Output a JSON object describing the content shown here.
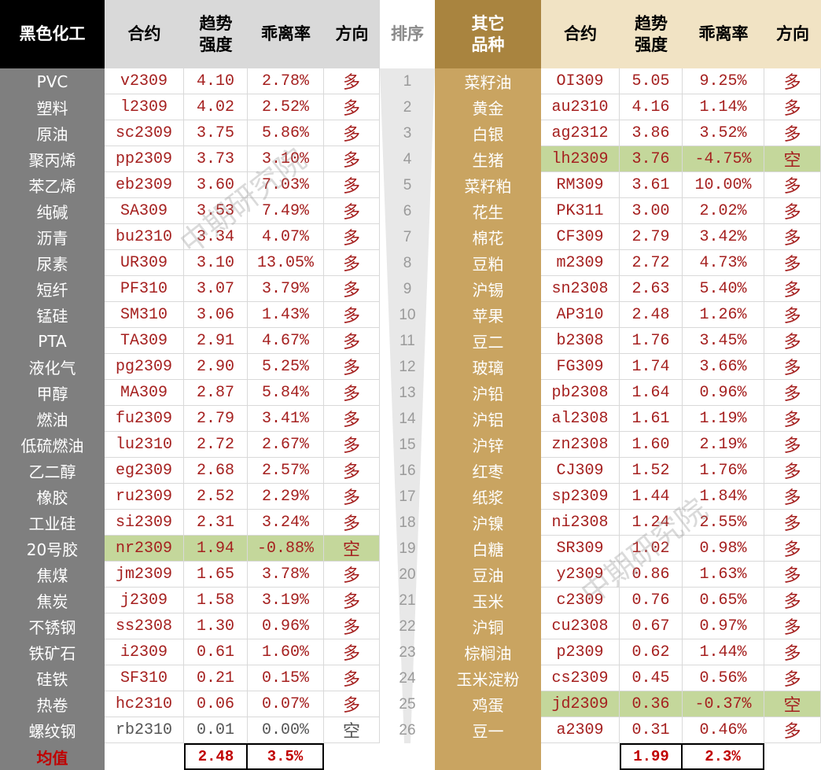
{
  "headers": {
    "left_title": "黑色化工",
    "contract": "合约",
    "strength": [
      "趋势",
      "强度"
    ],
    "deviation": "乖离率",
    "direction": "方向",
    "rank": "排序",
    "right_title": [
      "其它",
      "品种"
    ]
  },
  "left_rows": [
    {
      "name": "PVC",
      "contract": "v2309",
      "strength": "4.10",
      "deviation": "2.78%",
      "direction": "多"
    },
    {
      "name": "塑料",
      "contract": "l2309",
      "strength": "4.02",
      "deviation": "2.52%",
      "direction": "多"
    },
    {
      "name": "原油",
      "contract": "sc2309",
      "strength": "3.75",
      "deviation": "5.86%",
      "direction": "多"
    },
    {
      "name": "聚丙烯",
      "contract": "pp2309",
      "strength": "3.73",
      "deviation": "3.10%",
      "direction": "多"
    },
    {
      "name": "苯乙烯",
      "contract": "eb2309",
      "strength": "3.60",
      "deviation": "7.03%",
      "direction": "多"
    },
    {
      "name": "纯碱",
      "contract": "SA309",
      "strength": "3.53",
      "deviation": "7.49%",
      "direction": "多"
    },
    {
      "name": "沥青",
      "contract": "bu2310",
      "strength": "3.34",
      "deviation": "4.07%",
      "direction": "多"
    },
    {
      "name": "尿素",
      "contract": "UR309",
      "strength": "3.10",
      "deviation": "13.05%",
      "direction": "多"
    },
    {
      "name": "短纤",
      "contract": "PF310",
      "strength": "3.07",
      "deviation": "3.79%",
      "direction": "多"
    },
    {
      "name": "锰硅",
      "contract": "SM310",
      "strength": "3.06",
      "deviation": "1.43%",
      "direction": "多"
    },
    {
      "name": "PTA",
      "contract": "TA309",
      "strength": "2.91",
      "deviation": "4.67%",
      "direction": "多"
    },
    {
      "name": "液化气",
      "contract": "pg2309",
      "strength": "2.90",
      "deviation": "5.25%",
      "direction": "多"
    },
    {
      "name": "甲醇",
      "contract": "MA309",
      "strength": "2.87",
      "deviation": "5.84%",
      "direction": "多"
    },
    {
      "name": "燃油",
      "contract": "fu2309",
      "strength": "2.79",
      "deviation": "3.41%",
      "direction": "多"
    },
    {
      "name": "低硫燃油",
      "contract": "lu2310",
      "strength": "2.72",
      "deviation": "2.67%",
      "direction": "多"
    },
    {
      "name": "乙二醇",
      "contract": "eg2309",
      "strength": "2.68",
      "deviation": "2.57%",
      "direction": "多"
    },
    {
      "name": "橡胶",
      "contract": "ru2309",
      "strength": "2.52",
      "deviation": "2.29%",
      "direction": "多"
    },
    {
      "name": "工业硅",
      "contract": "si2309",
      "strength": "2.31",
      "deviation": "3.24%",
      "direction": "多"
    },
    {
      "name": "20号胶",
      "contract": "nr2309",
      "strength": "1.94",
      "deviation": "-0.88%",
      "direction": "空",
      "short": true
    },
    {
      "name": "焦煤",
      "contract": "jm2309",
      "strength": "1.65",
      "deviation": "3.78%",
      "direction": "多"
    },
    {
      "name": "焦炭",
      "contract": "j2309",
      "strength": "1.58",
      "deviation": "3.19%",
      "direction": "多"
    },
    {
      "name": "不锈钢",
      "contract": "ss2308",
      "strength": "1.30",
      "deviation": "0.96%",
      "direction": "多"
    },
    {
      "name": "铁矿石",
      "contract": "i2309",
      "strength": "0.61",
      "deviation": "1.60%",
      "direction": "多"
    },
    {
      "name": "硅铁",
      "contract": "SF310",
      "strength": "0.21",
      "deviation": "0.15%",
      "direction": "多"
    },
    {
      "name": "热卷",
      "contract": "hc2310",
      "strength": "0.06",
      "deviation": "0.07%",
      "direction": "多"
    },
    {
      "name": "螺纹钢",
      "contract": "rb2310",
      "strength": "0.01",
      "deviation": "0.00%",
      "direction": "空",
      "muted": true
    }
  ],
  "ranks": [
    "1",
    "2",
    "3",
    "4",
    "5",
    "6",
    "7",
    "8",
    "9",
    "10",
    "11",
    "12",
    "13",
    "14",
    "15",
    "16",
    "17",
    "18",
    "19",
    "20",
    "21",
    "22",
    "23",
    "24",
    "25",
    "26"
  ],
  "right_rows": [
    {
      "name": "菜籽油",
      "contract": "OI309",
      "strength": "5.05",
      "deviation": "9.25%",
      "direction": "多"
    },
    {
      "name": "黄金",
      "contract": "au2310",
      "strength": "4.16",
      "deviation": "1.14%",
      "direction": "多"
    },
    {
      "name": "白银",
      "contract": "ag2312",
      "strength": "3.86",
      "deviation": "3.52%",
      "direction": "多"
    },
    {
      "name": "生猪",
      "contract": "lh2309",
      "strength": "3.76",
      "deviation": "-4.75%",
      "direction": "空",
      "short": true
    },
    {
      "name": "菜籽粕",
      "contract": "RM309",
      "strength": "3.61",
      "deviation": "10.00%",
      "direction": "多"
    },
    {
      "name": "花生",
      "contract": "PK311",
      "strength": "3.00",
      "deviation": "2.02%",
      "direction": "多"
    },
    {
      "name": "棉花",
      "contract": "CF309",
      "strength": "2.79",
      "deviation": "3.42%",
      "direction": "多"
    },
    {
      "name": "豆粕",
      "contract": "m2309",
      "strength": "2.72",
      "deviation": "4.73%",
      "direction": "多"
    },
    {
      "name": "沪锡",
      "contract": "sn2308",
      "strength": "2.63",
      "deviation": "5.40%",
      "direction": "多"
    },
    {
      "name": "苹果",
      "contract": "AP310",
      "strength": "2.48",
      "deviation": "1.26%",
      "direction": "多"
    },
    {
      "name": "豆二",
      "contract": "b2308",
      "strength": "1.76",
      "deviation": "3.45%",
      "direction": "多"
    },
    {
      "name": "玻璃",
      "contract": "FG309",
      "strength": "1.74",
      "deviation": "3.66%",
      "direction": "多"
    },
    {
      "name": "沪铅",
      "contract": "pb2308",
      "strength": "1.64",
      "deviation": "0.96%",
      "direction": "多"
    },
    {
      "name": "沪铝",
      "contract": "al2308",
      "strength": "1.61",
      "deviation": "1.19%",
      "direction": "多"
    },
    {
      "name": "沪锌",
      "contract": "zn2308",
      "strength": "1.60",
      "deviation": "2.19%",
      "direction": "多"
    },
    {
      "name": "红枣",
      "contract": "CJ309",
      "strength": "1.52",
      "deviation": "1.76%",
      "direction": "多"
    },
    {
      "name": "纸浆",
      "contract": "sp2309",
      "strength": "1.44",
      "deviation": "1.84%",
      "direction": "多"
    },
    {
      "name": "沪镍",
      "contract": "ni2308",
      "strength": "1.24",
      "deviation": "2.55%",
      "direction": "多"
    },
    {
      "name": "白糖",
      "contract": "SR309",
      "strength": "1.02",
      "deviation": "0.98%",
      "direction": "多"
    },
    {
      "name": "豆油",
      "contract": "y2309",
      "strength": "0.86",
      "deviation": "1.63%",
      "direction": "多"
    },
    {
      "name": "玉米",
      "contract": "c2309",
      "strength": "0.76",
      "deviation": "0.65%",
      "direction": "多"
    },
    {
      "name": "沪铜",
      "contract": "cu2308",
      "strength": "0.67",
      "deviation": "0.97%",
      "direction": "多"
    },
    {
      "name": "棕榈油",
      "contract": "p2309",
      "strength": "0.62",
      "deviation": "1.44%",
      "direction": "多"
    },
    {
      "name": "玉米淀粉",
      "contract": "cs2309",
      "strength": "0.45",
      "deviation": "0.56%",
      "direction": "多"
    },
    {
      "name": "鸡蛋",
      "contract": "jd2309",
      "strength": "0.36",
      "deviation": "-0.37%",
      "direction": "空",
      "short": true
    },
    {
      "name": "豆一",
      "contract": "a2309",
      "strength": "0.31",
      "deviation": "0.46%",
      "direction": "多"
    }
  ],
  "footer": {
    "avg_label": "均值",
    "left_avg_strength": "2.48",
    "left_avg_deviation": "3.5%",
    "right_avg_strength": "1.99",
    "right_avg_deviation": "2.3%"
  },
  "watermarks": [
    "中期研究院",
    "中期研究院"
  ],
  "colors": {
    "left_header_bg": "#000000",
    "gray_header_bg": "#d9d9d9",
    "left_name_bg": "#7f7f7f",
    "right_header_bg": "#a9843f",
    "right_header_light": "#f1e3c4",
    "right_name_bg": "#c9a461",
    "value_text": "#a5201f",
    "short_bg": "#c4d79b",
    "avg_text": "#c00000"
  }
}
